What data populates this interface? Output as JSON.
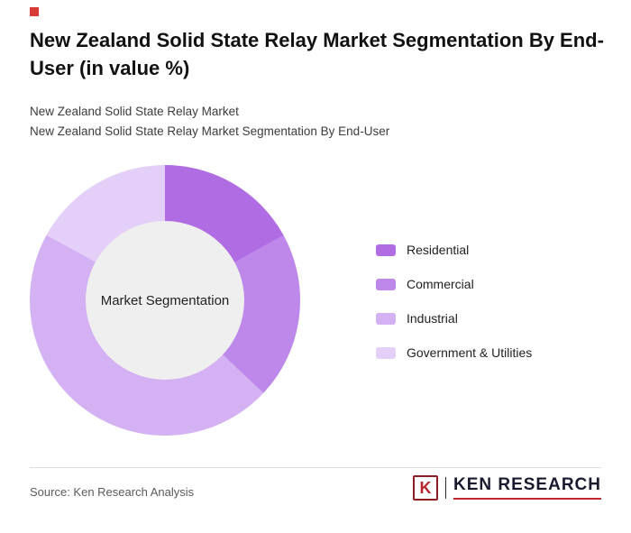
{
  "page": {
    "accent_color": "#d93a35",
    "background_color": "#ffffff",
    "title": "New Zealand Solid State Relay Market Segmentation By End-User (in value %)",
    "subtitle_line1": "New Zealand Solid State Relay Market",
    "subtitle_line2": "New Zealand Solid State Relay Market Segmentation By End-User"
  },
  "chart_data": {
    "type": "pie",
    "donut": true,
    "title": "New Zealand Solid State Relay Market Segmentation By End-User (in value %)",
    "center_label": "Market Segmentation",
    "legend_position": "right",
    "units": "value %",
    "hole_color": "#efefef",
    "segments": [
      {
        "label": "Residential",
        "value": 17,
        "color": "#b06ce2"
      },
      {
        "label": "Commercial",
        "value": 20,
        "color": "#bd88ea"
      },
      {
        "label": "Industrial",
        "value": 46,
        "color": "#d3b1f3"
      },
      {
        "label": "Government & Utilities",
        "value": 17,
        "color": "#e4cff8"
      }
    ]
  },
  "footer": {
    "source_text": "Source: Ken Research Analysis",
    "logo_letter": "K",
    "logo_text": "KEN RESEARCH"
  }
}
